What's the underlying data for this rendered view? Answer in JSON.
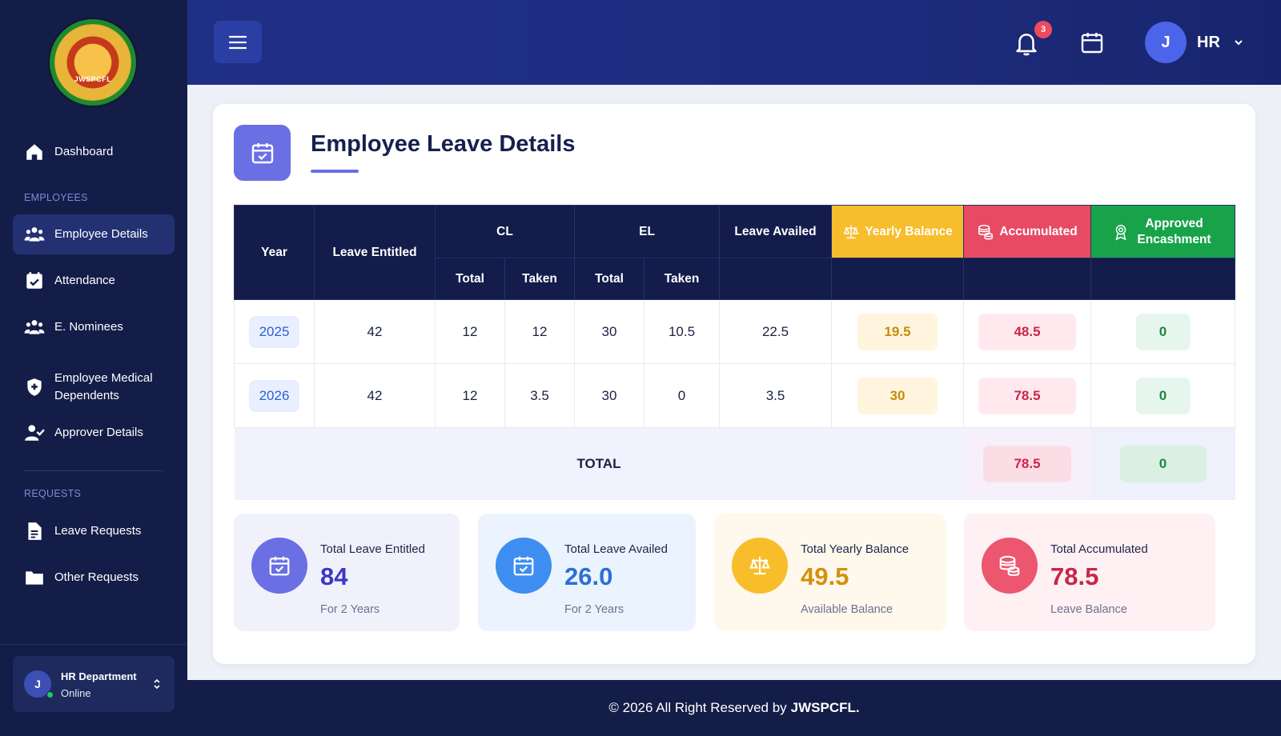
{
  "brand": {
    "logo_text": "JWSPCFL"
  },
  "sidebar": {
    "items": [
      {
        "label": "Dashboard",
        "icon": "home-icon"
      },
      {
        "label": "Employee Details",
        "icon": "users-icon",
        "active": true
      },
      {
        "label": "Attendance",
        "icon": "calendar-check-icon"
      },
      {
        "label": "E. Nominees",
        "icon": "users-icon"
      },
      {
        "label": "Employee Medical Dependents",
        "icon": "medical-shield-icon"
      },
      {
        "label": "Approver Details",
        "icon": "user-check-icon"
      },
      {
        "label": "Leave Requests",
        "icon": "document-icon"
      },
      {
        "label": "Other Requests",
        "icon": "folder-icon"
      }
    ],
    "sections": {
      "employees": "EMPLOYEES",
      "requests": "REQUESTS"
    },
    "user": {
      "initial": "J",
      "name": "HR Department",
      "status": "Online"
    }
  },
  "header": {
    "notification_count": "3",
    "user_initial": "J",
    "user_label": "HR"
  },
  "page": {
    "title": "Employee Leave Details"
  },
  "table": {
    "headers": {
      "year": "Year",
      "leave_entitled": "Leave Entitled",
      "cl": "CL",
      "el": "EL",
      "total": "Total",
      "taken": "Taken",
      "leave_availed": "Leave Availed",
      "yearly_balance": "Yearly Balance",
      "accumulated": "Accumulated",
      "approved_encashment": "Approved Encashment"
    },
    "rows": [
      {
        "year": "2025",
        "leave_entitled": "42",
        "cl_total": "12",
        "cl_taken": "12",
        "el_total": "30",
        "el_taken": "10.5",
        "leave_availed": "22.5",
        "yearly_balance": "19.5",
        "accumulated": "48.5",
        "approved_encashment": "0"
      },
      {
        "year": "2026",
        "leave_entitled": "42",
        "cl_total": "12",
        "cl_taken": "3.5",
        "el_total": "30",
        "el_taken": "0",
        "leave_availed": "3.5",
        "yearly_balance": "30",
        "accumulated": "78.5",
        "approved_encashment": "0"
      }
    ],
    "total": {
      "label": "TOTAL",
      "accumulated": "78.5",
      "approved_encashment": "0"
    }
  },
  "stats": [
    {
      "label": "Total Leave Entitled",
      "value": "84",
      "sub": "For 2 Years",
      "color": "#3b38c4",
      "bg": "#f1f1fc",
      "circle": "#6a6fe4",
      "icon": "calendar-check-icon"
    },
    {
      "label": "Total Leave Availed",
      "value": "26.0",
      "sub": "For 2 Years",
      "color": "#2b6fd8",
      "bg": "#ebf3fe",
      "circle": "#3d8ef0",
      "icon": "calendar-check-icon"
    },
    {
      "label": "Total Yearly Balance",
      "value": "49.5",
      "sub": "Available Balance",
      "color": "#d68f0a",
      "bg": "#fff8ec",
      "circle": "#f8bd2a",
      "icon": "balance-scale-icon"
    },
    {
      "label": "Total Accumulated",
      "value": "78.5",
      "sub": "Leave Balance",
      "color": "#c9254a",
      "bg": "#fef0f3",
      "circle": "#ec566f",
      "icon": "coins-icon"
    }
  ],
  "footer": {
    "text": "© 2026 All Right Reserved by",
    "brand": "JWSPCFL."
  }
}
